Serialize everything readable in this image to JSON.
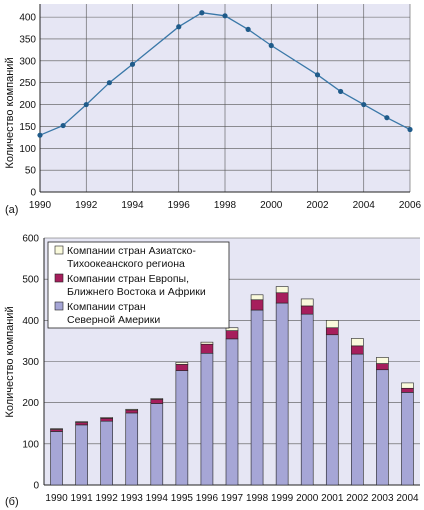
{
  "chart_data": [
    {
      "type": "line",
      "panel_label": "(а)",
      "ylabel": "Количество компаний",
      "x": [
        1990,
        1991,
        1992,
        1993,
        1994,
        1996,
        1997,
        1998,
        1999,
        2000,
        2002,
        2003,
        2004,
        2005,
        2006
      ],
      "values": [
        130,
        152,
        200,
        250,
        292,
        378,
        410,
        403,
        372,
        335,
        268,
        230,
        200,
        170,
        143
      ],
      "xticks": [
        "1990",
        "1992",
        "1994",
        "1996",
        "1998",
        "2000",
        "2002",
        "2004",
        "2006"
      ],
      "yticks": [
        "0",
        "50",
        "100",
        "150",
        "200",
        "250",
        "300",
        "350",
        "400"
      ],
      "xlim": [
        1990,
        2006
      ],
      "ylim": [
        0,
        430
      ],
      "grid": true,
      "colors": {
        "line": "#3a78a8",
        "marker": "#1f5b8a",
        "bg": "#e6e6f4"
      }
    },
    {
      "type": "bar",
      "stacked": true,
      "panel_label": "(б)",
      "ylabel": "Количество компаний",
      "categories": [
        "1990",
        "1991",
        "1992",
        "1993",
        "1994",
        "1995",
        "1996",
        "1997",
        "1998",
        "1999",
        "2000",
        "2001",
        "2002",
        "2003",
        "2004"
      ],
      "series": [
        {
          "name": "Компании стран Северной Америки",
          "color": "#a6a6d6",
          "values": [
            130,
            146,
            155,
            175,
            198,
            278,
            320,
            355,
            425,
            442,
            415,
            365,
            318,
            280,
            225
          ]
        },
        {
          "name": "Компании стран Европы, Ближнего Востока и Африки",
          "color": "#a61e5c",
          "values": [
            5,
            6,
            7,
            7,
            10,
            15,
            22,
            20,
            25,
            25,
            20,
            17,
            20,
            15,
            10
          ]
        },
        {
          "name": "Компании стран Азиатско-Тихоокеанского региона",
          "color": "#fafadc",
          "values": [
            2,
            2,
            2,
            2,
            2,
            5,
            5,
            7,
            12,
            15,
            17,
            18,
            18,
            15,
            13
          ]
        }
      ],
      "yticks": [
        "0",
        "100",
        "200",
        "300",
        "400",
        "500",
        "600"
      ],
      "ylim": [
        0,
        600
      ],
      "grid": true,
      "legend_position": "top-left",
      "legend": [
        {
          "series": 2,
          "lines": [
            "Компании стран Азиатско-",
            "Тихоокеанского региона"
          ]
        },
        {
          "series": 1,
          "lines": [
            "Компании стран Европы,",
            "Ближнего Востока и Африки"
          ]
        },
        {
          "series": 0,
          "lines": [
            "Компании стран",
            "Северной Америки"
          ]
        }
      ],
      "colors": {
        "bg": "#e6e6f4"
      }
    }
  ]
}
